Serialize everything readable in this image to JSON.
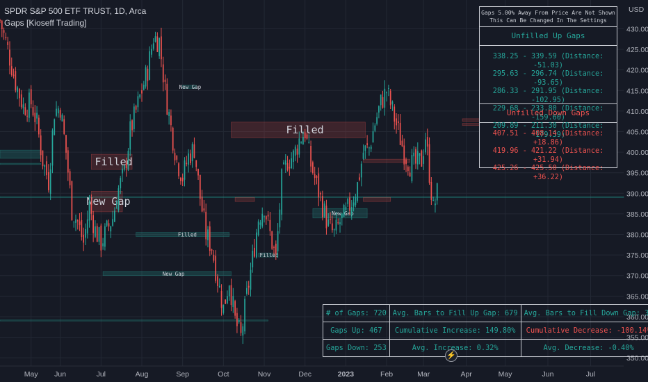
{
  "header": {
    "symbol_line": "SPDR S&P 500 ETF TRUST, 1D, Arca",
    "indicator_line": "Gaps [Kioseff Trading]"
  },
  "info_panel": {
    "note_line1": "Gaps 5.00% Away From Price Are Not Shown",
    "note_line2": "This Can Be Changed In The Settings",
    "up_title": "Unfilled Up Gaps",
    "up_gaps": [
      "338.25 - 339.59 (Distance: -51.03)",
      "295.63 - 296.74 (Distance: -93.65)",
      "286.33 - 291.95 (Distance: -102.95)",
      "229.68 - 233.80 (Distance: -159.60)",
      "209.89 - 211.30 (Distance: -179.39)"
    ],
    "down_title": "Unfilled Down Gaps",
    "down_gaps": [
      "407.51 - 408.14 (Distance: +18.86)",
      "419.96 - 421.22 (Distance: +31.94)",
      "425.26 - 425.50 (Distance: +36.22)"
    ]
  },
  "stats": {
    "num_gaps": "# of Gaps: 720",
    "avg_bars_up": "Avg. Bars to Fill Up Gap: 679",
    "avg_bars_down": "Avg. Bars to Fill Down Gap: 33",
    "gaps_up": "Gaps Up: 467",
    "cum_increase": "Cumulative Increase: 149.80%",
    "cum_decrease": "Cumulative Decrease: -100.14%",
    "gaps_down": "Gaps Down: 253",
    "avg_increase": "Avg. Increase: 0.32%",
    "avg_decrease": "Avg. Decrease: -0.40%"
  },
  "icons": {
    "bolt": "lightning-icon"
  },
  "colors": {
    "up": "#26a69a",
    "down": "#ef5350",
    "background": "#161a25",
    "grid": "#232834"
  },
  "chart_data": {
    "type": "candlestick",
    "y_axis_label": "USD",
    "ylim": [
      348,
      437
    ],
    "y_ticks": [
      350,
      355,
      360,
      365,
      370,
      375,
      380,
      385,
      390,
      395,
      400,
      405,
      410,
      415,
      420,
      425,
      430
    ],
    "y_tick_labels": [
      "350.00",
      "355.00",
      "360.00",
      "365.00",
      "370.00",
      "375.00",
      "380.00",
      "385.00",
      "390.00",
      "395.00",
      "400.00",
      "405.00",
      "410.00",
      "415.00",
      "420.00",
      "425.00",
      "430.00"
    ],
    "x_tick_labels": [
      "May",
      "Jun",
      "Jul",
      "Aug",
      "Sep",
      "Oct",
      "Nov",
      "Dec",
      "2023",
      "Feb",
      "Mar",
      "Apr",
      "May",
      "Jun",
      "Jul"
    ],
    "x_tick_bar_index": [
      28,
      43,
      64,
      85,
      106,
      127,
      148,
      169,
      190,
      211,
      230,
      252,
      272,
      294,
      316
    ],
    "x_range_bars": [
      12,
      333
    ],
    "close_series": [
      {
        "bar": 12,
        "close": 432
      },
      {
        "bar": 16,
        "close": 425
      },
      {
        "bar": 20,
        "close": 417
      },
      {
        "bar": 24,
        "close": 411
      },
      {
        "bar": 28,
        "close": 412
      },
      {
        "bar": 31,
        "close": 407
      },
      {
        "bar": 34,
        "close": 398
      },
      {
        "bar": 37,
        "close": 393
      },
      {
        "bar": 40,
        "close": 410
      },
      {
        "bar": 43,
        "close": 411
      },
      {
        "bar": 46,
        "close": 400
      },
      {
        "bar": 49,
        "close": 386
      },
      {
        "bar": 52,
        "close": 383
      },
      {
        "bar": 55,
        "close": 378
      },
      {
        "bar": 58,
        "close": 387
      },
      {
        "bar": 61,
        "close": 381
      },
      {
        "bar": 64,
        "close": 378
      },
      {
        "bar": 67,
        "close": 381
      },
      {
        "bar": 70,
        "close": 384
      },
      {
        "bar": 73,
        "close": 391
      },
      {
        "bar": 76,
        "close": 395
      },
      {
        "bar": 79,
        "close": 405
      },
      {
        "bar": 82,
        "close": 410
      },
      {
        "bar": 85,
        "close": 415
      },
      {
        "bar": 88,
        "close": 420
      },
      {
        "bar": 91,
        "close": 428
      },
      {
        "bar": 94,
        "close": 427
      },
      {
        "bar": 97,
        "close": 415
      },
      {
        "bar": 100,
        "close": 406
      },
      {
        "bar": 103,
        "close": 398
      },
      {
        "bar": 106,
        "close": 394
      },
      {
        "bar": 109,
        "close": 399
      },
      {
        "bar": 112,
        "close": 401
      },
      {
        "bar": 115,
        "close": 389
      },
      {
        "bar": 118,
        "close": 380
      },
      {
        "bar": 121,
        "close": 377
      },
      {
        "bar": 124,
        "close": 369
      },
      {
        "bar": 127,
        "close": 362
      },
      {
        "bar": 130,
        "close": 369
      },
      {
        "bar": 133,
        "close": 359
      },
      {
        "bar": 136,
        "close": 355
      },
      {
        "bar": 139,
        "close": 365
      },
      {
        "bar": 142,
        "close": 374
      },
      {
        "bar": 145,
        "close": 384
      },
      {
        "bar": 148,
        "close": 387
      },
      {
        "bar": 151,
        "close": 380
      },
      {
        "bar": 154,
        "close": 374
      },
      {
        "bar": 157,
        "close": 393
      },
      {
        "bar": 160,
        "close": 398
      },
      {
        "bar": 163,
        "close": 399
      },
      {
        "bar": 166,
        "close": 403
      },
      {
        "bar": 169,
        "close": 405
      },
      {
        "bar": 172,
        "close": 397
      },
      {
        "bar": 175,
        "close": 392
      },
      {
        "bar": 178,
        "close": 387
      },
      {
        "bar": 181,
        "close": 382
      },
      {
        "bar": 184,
        "close": 380
      },
      {
        "bar": 187,
        "close": 383
      },
      {
        "bar": 190,
        "close": 385
      },
      {
        "bar": 193,
        "close": 388
      },
      {
        "bar": 196,
        "close": 392
      },
      {
        "bar": 199,
        "close": 400
      },
      {
        "bar": 202,
        "close": 401
      },
      {
        "bar": 205,
        "close": 407
      },
      {
        "bar": 208,
        "close": 412
      },
      {
        "bar": 211,
        "close": 415
      },
      {
        "bar": 214,
        "close": 410
      },
      {
        "bar": 217,
        "close": 405
      },
      {
        "bar": 220,
        "close": 400
      },
      {
        "bar": 223,
        "close": 397
      },
      {
        "bar": 226,
        "close": 397
      },
      {
        "bar": 229,
        "close": 398
      },
      {
        "bar": 231,
        "close": 404
      },
      {
        "bar": 233,
        "close": 395
      },
      {
        "bar": 235,
        "close": 386
      },
      {
        "bar": 237,
        "close": 390
      }
    ],
    "gap_zones": [
      {
        "bar_start": 12,
        "bar_end": 33,
        "low": 398.5,
        "high": 400.5,
        "type": "up",
        "label": ""
      },
      {
        "bar_start": 12,
        "bar_end": 33,
        "low": 397.0,
        "high": 397.3,
        "type": "up",
        "label": ""
      },
      {
        "bar_start": 12,
        "bar_end": 333,
        "low": 389.0,
        "high": 389.2,
        "type": "up",
        "label": ""
      },
      {
        "bar_start": 12,
        "bar_end": 150,
        "low": 359.0,
        "high": 359.2,
        "type": "up",
        "label": ""
      },
      {
        "bar_start": 59,
        "bar_end": 80,
        "low": 395.8,
        "high": 399.5,
        "type": "down",
        "label": "Filled"
      },
      {
        "bar_start": 59,
        "bar_end": 75,
        "low": 385.5,
        "high": 390.5,
        "type": "down",
        "label": "New Gap"
      },
      {
        "bar_start": 82,
        "bar_end": 130,
        "low": 379.5,
        "high": 380.5,
        "type": "up",
        "label": "Filled"
      },
      {
        "bar_start": 65,
        "bar_end": 131,
        "low": 370.0,
        "high": 371.0,
        "type": "up",
        "label": "New Gap"
      },
      {
        "bar_start": 106,
        "bar_end": 113,
        "low": 415.5,
        "high": 416.3,
        "type": "up",
        "label": "New Gap"
      },
      {
        "bar_start": 131,
        "bar_end": 200,
        "low": 403.5,
        "high": 407.3,
        "type": "down",
        "label": "Filled"
      },
      {
        "bar_start": 173,
        "bar_end": 201,
        "low": 384.0,
        "high": 386.3,
        "type": "up",
        "label": "New Gap"
      },
      {
        "bar_start": 199,
        "bar_end": 223,
        "low": 397.5,
        "high": 398.3,
        "type": "down",
        "label": ""
      },
      {
        "bar_start": 199,
        "bar_end": 213,
        "low": 388.0,
        "high": 389.0,
        "type": "down",
        "label": ""
      },
      {
        "bar_start": 133,
        "bar_end": 143,
        "low": 388.0,
        "high": 389.0,
        "type": "down",
        "label": ""
      },
      {
        "bar_start": 250,
        "bar_end": 279,
        "low": 407.51,
        "high": 408.14,
        "type": "down",
        "label": ""
      },
      {
        "bar_start": 250,
        "bar_end": 270,
        "low": 406.5,
        "high": 407.0,
        "type": "down",
        "label": ""
      },
      {
        "bar_start": 145,
        "bar_end": 155,
        "low": 374.5,
        "high": 375.5,
        "type": "up",
        "label": "Filled"
      }
    ]
  }
}
